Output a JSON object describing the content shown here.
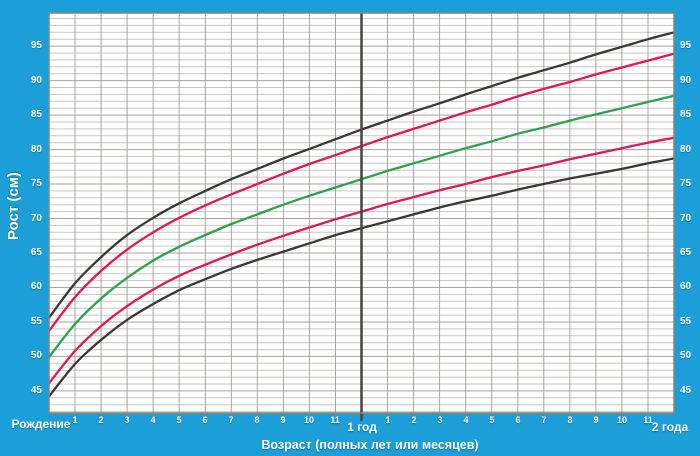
{
  "background_color": "#1c9ed8",
  "plot": {
    "bg": "#ffffff",
    "grid_minor": "#c9c5c1",
    "grid_major": "#a8a4a0",
    "grid_vertical": "#a8a4a0",
    "border": "#87837e",
    "year_line": "#4a443f",
    "text_color": "#ffffff"
  },
  "y_axis": {
    "title": "Рост (см)",
    "tick_labels": [
      45,
      50,
      55,
      60,
      65,
      70,
      75,
      80,
      85,
      90,
      95
    ]
  },
  "x_axis": {
    "title": "Возраст (полных лет или месяцев)",
    "birth_label": "Рождение",
    "year1_label": "1 год",
    "year2_label": "2 года",
    "month_labels": [
      "1",
      "2",
      "3",
      "4",
      "5",
      "6",
      "7",
      "8",
      "9",
      "10",
      "11"
    ]
  },
  "chart_data": {
    "type": "line",
    "xlabel": "Возраст (полных лет или месяцев)",
    "ylabel": "Рост (см)",
    "xlim": [
      0,
      24
    ],
    "ylim": [
      41.8,
      99.8
    ],
    "grid": "on",
    "legend": "none",
    "x_months": [
      0,
      1,
      2,
      3,
      4,
      5,
      6,
      7,
      8,
      9,
      10,
      11,
      12,
      13,
      14,
      15,
      16,
      17,
      18,
      19,
      20,
      21,
      22,
      23,
      24
    ],
    "reference_line_x_months": 12,
    "series": [
      {
        "name": "upper-black",
        "color": "#3a3734",
        "values": [
          55.6,
          60.6,
          64.4,
          67.6,
          70.1,
          72.2,
          74.0,
          75.7,
          77.2,
          78.7,
          80.1,
          81.5,
          82.9,
          84.2,
          85.5,
          86.7,
          88.0,
          89.2,
          90.4,
          91.5,
          92.6,
          93.8,
          94.9,
          96.0,
          97.0
        ]
      },
      {
        "name": "upper-red",
        "color": "#dd1a52",
        "values": [
          53.7,
          58.6,
          62.4,
          65.5,
          68.0,
          70.1,
          71.9,
          73.5,
          75.0,
          76.5,
          77.9,
          79.2,
          80.5,
          81.8,
          83.0,
          84.2,
          85.4,
          86.5,
          87.7,
          88.8,
          89.8,
          90.9,
          91.9,
          92.9,
          93.9
        ]
      },
      {
        "name": "middle-green",
        "color": "#2ea14f",
        "values": [
          49.9,
          54.7,
          58.4,
          61.4,
          63.9,
          65.9,
          67.6,
          69.2,
          70.6,
          72.0,
          73.3,
          74.5,
          75.7,
          76.9,
          78.0,
          79.1,
          80.2,
          81.2,
          82.3,
          83.2,
          84.2,
          85.1,
          86.0,
          86.9,
          87.8
        ]
      },
      {
        "name": "lower-red",
        "color": "#dd1a52",
        "values": [
          46.1,
          50.8,
          54.4,
          57.3,
          59.7,
          61.7,
          63.3,
          64.8,
          66.2,
          67.5,
          68.7,
          69.9,
          71.0,
          72.1,
          73.1,
          74.1,
          75.0,
          76.0,
          76.9,
          77.7,
          78.6,
          79.4,
          80.2,
          81.0,
          81.7
        ]
      },
      {
        "name": "lower-black",
        "color": "#3a3734",
        "values": [
          44.2,
          48.9,
          52.4,
          55.3,
          57.6,
          59.6,
          61.2,
          62.7,
          64.0,
          65.2,
          66.4,
          67.6,
          68.6,
          69.6,
          70.6,
          71.6,
          72.5,
          73.3,
          74.2,
          75.0,
          75.8,
          76.5,
          77.2,
          78.0,
          78.7
        ]
      }
    ]
  }
}
